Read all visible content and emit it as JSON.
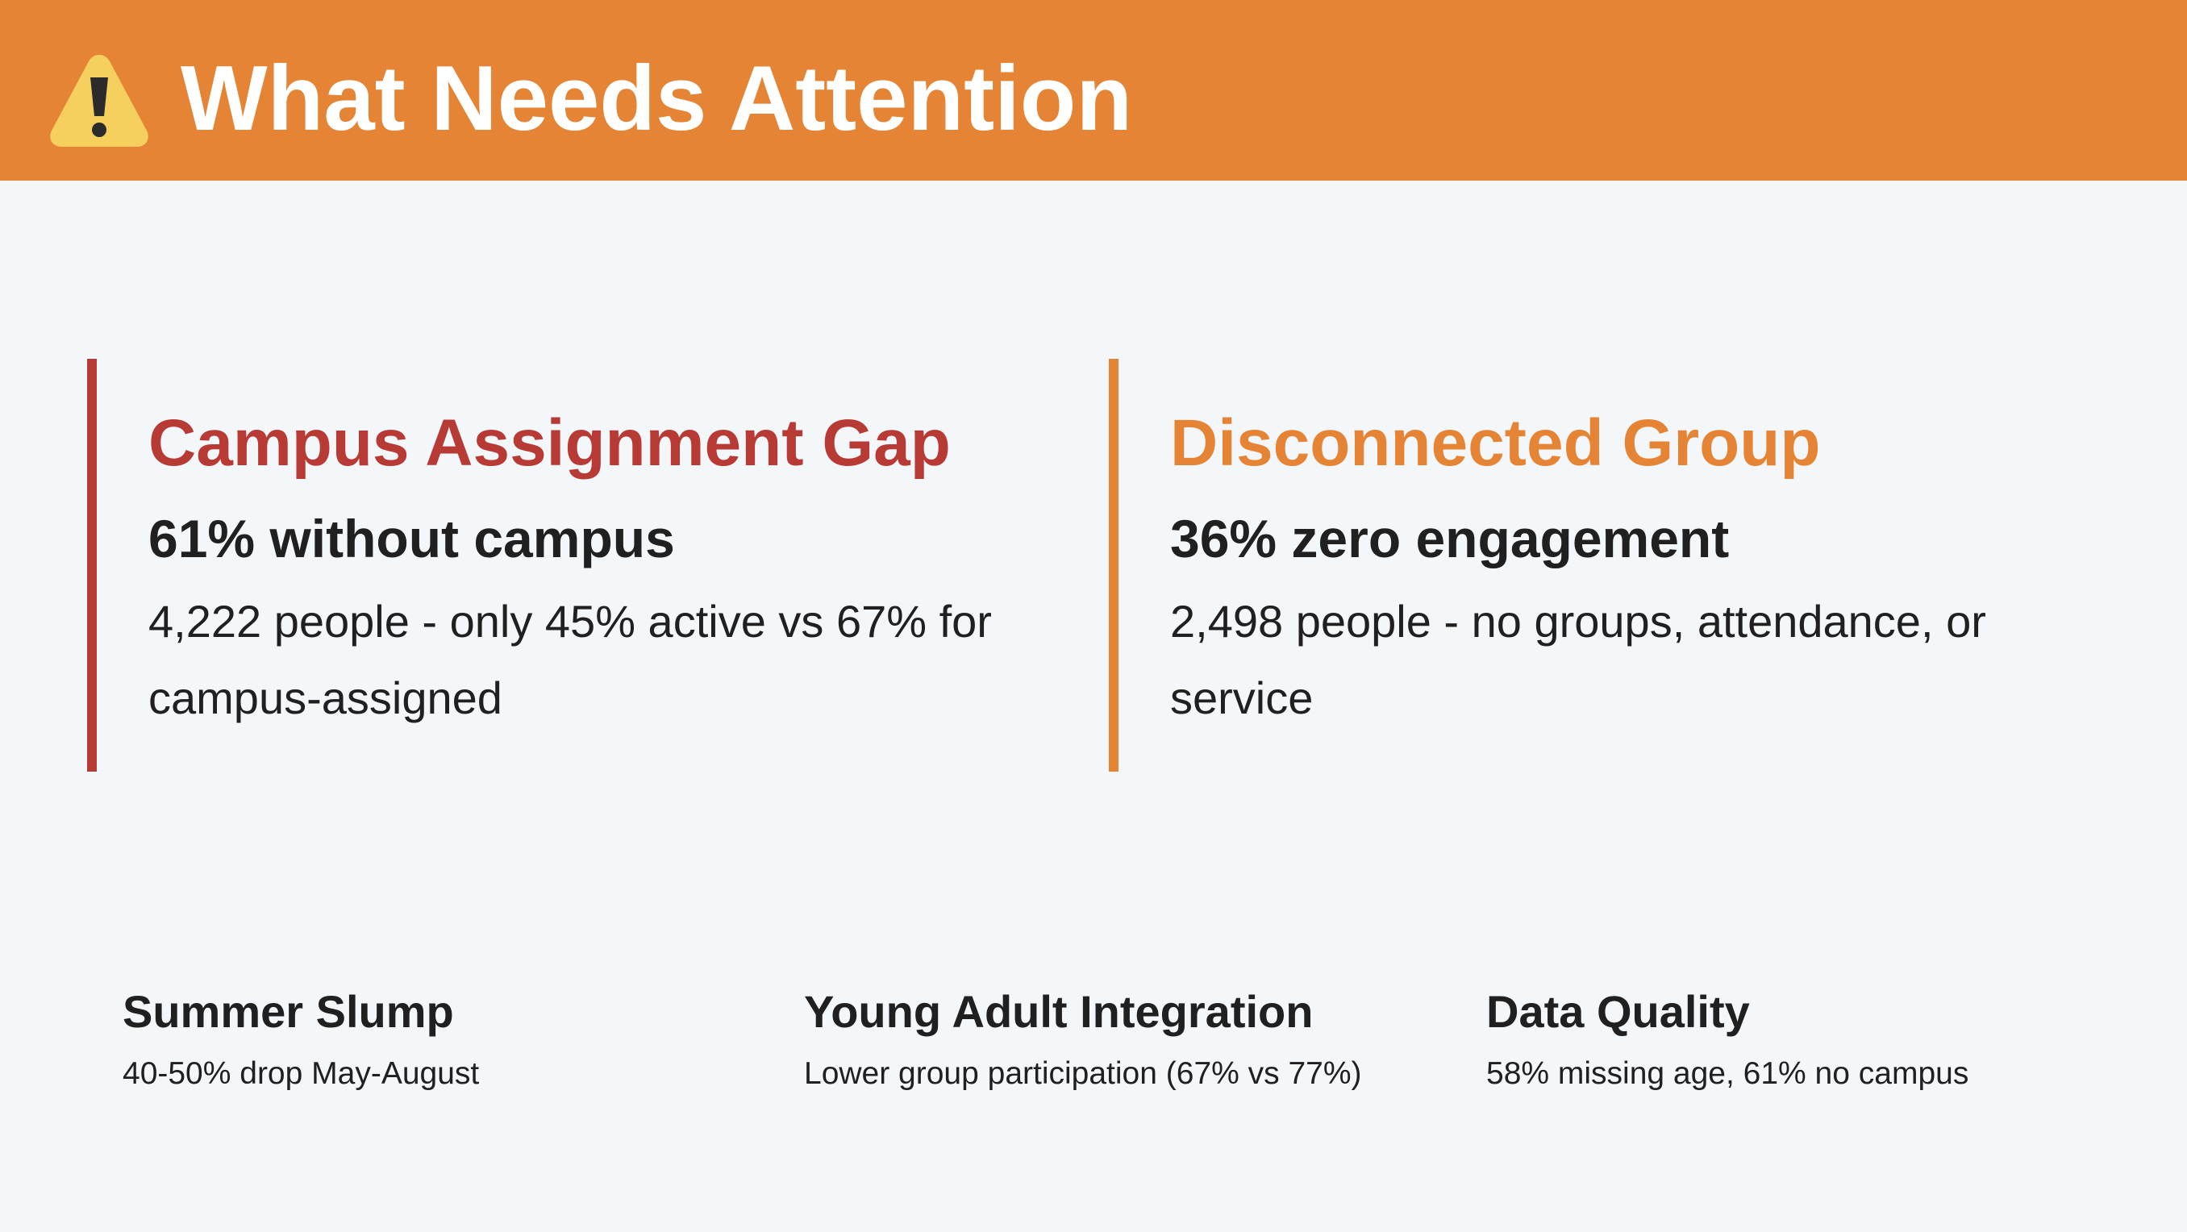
{
  "header": {
    "icon": "warning-icon",
    "title": "What Needs Attention",
    "background": "#e58434"
  },
  "cards": [
    {
      "title": "Campus Assignment Gap",
      "stat": "61% without campus",
      "description": "4,222 people - only 45% active vs 67% for campus-assigned",
      "accent": "#b73a35"
    },
    {
      "title": "Disconnected Group",
      "stat": "36% zero engagement",
      "description": "2,498 people - no groups, attendance, or service",
      "accent": "#e58434"
    }
  ],
  "minor_issues": [
    {
      "title": "Summer Slump",
      "text": "40-50% drop May-August"
    },
    {
      "title": "Young Adult Integration",
      "text": "Lower group participation (67% vs 77%)"
    },
    {
      "title": "Data Quality",
      "text": "58% missing age, 61% no campus"
    }
  ]
}
